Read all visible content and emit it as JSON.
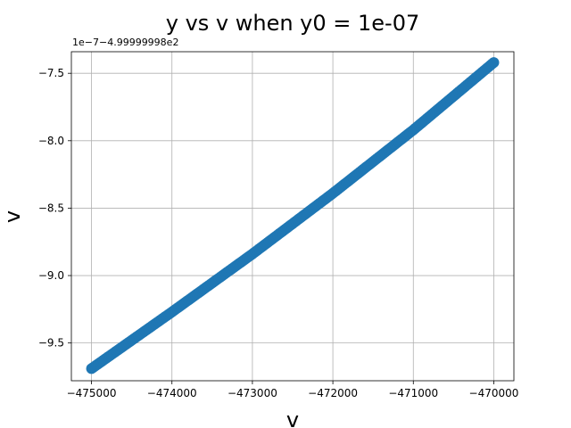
{
  "chart_data": {
    "type": "scatter",
    "title": "y vs v when y0 = 1e-07",
    "xlabel": "v",
    "ylabel": "v",
    "xlim": [
      -475250,
      -469750
    ],
    "ylim": [
      -9.78,
      -7.34
    ],
    "x_ticks": [
      -475000,
      -474000,
      -473000,
      -472000,
      -471000,
      -470000
    ],
    "x_tick_labels": [
      "−475000",
      "−474000",
      "−473000",
      "−472000",
      "−471000",
      "−470000"
    ],
    "y_ticks": [
      -9.5,
      -9.0,
      -8.5,
      -8.0,
      -7.5
    ],
    "y_tick_labels": [
      "−9.5",
      "−9.0",
      "−8.5",
      "−8.0",
      "−7.5"
    ],
    "y_offset_text": "1e−7−4.99999998e2",
    "grid": true,
    "series": [
      {
        "color": "#1f77b4",
        "x_range": [
          -475000,
          -470000
        ],
        "curve": [
          [
            -475000,
            -9.69
          ],
          [
            -474000,
            -9.27
          ],
          [
            -473000,
            -8.84
          ],
          [
            -472000,
            -8.39
          ],
          [
            -471000,
            -7.92
          ],
          [
            -470000,
            -7.42
          ]
        ]
      }
    ]
  }
}
